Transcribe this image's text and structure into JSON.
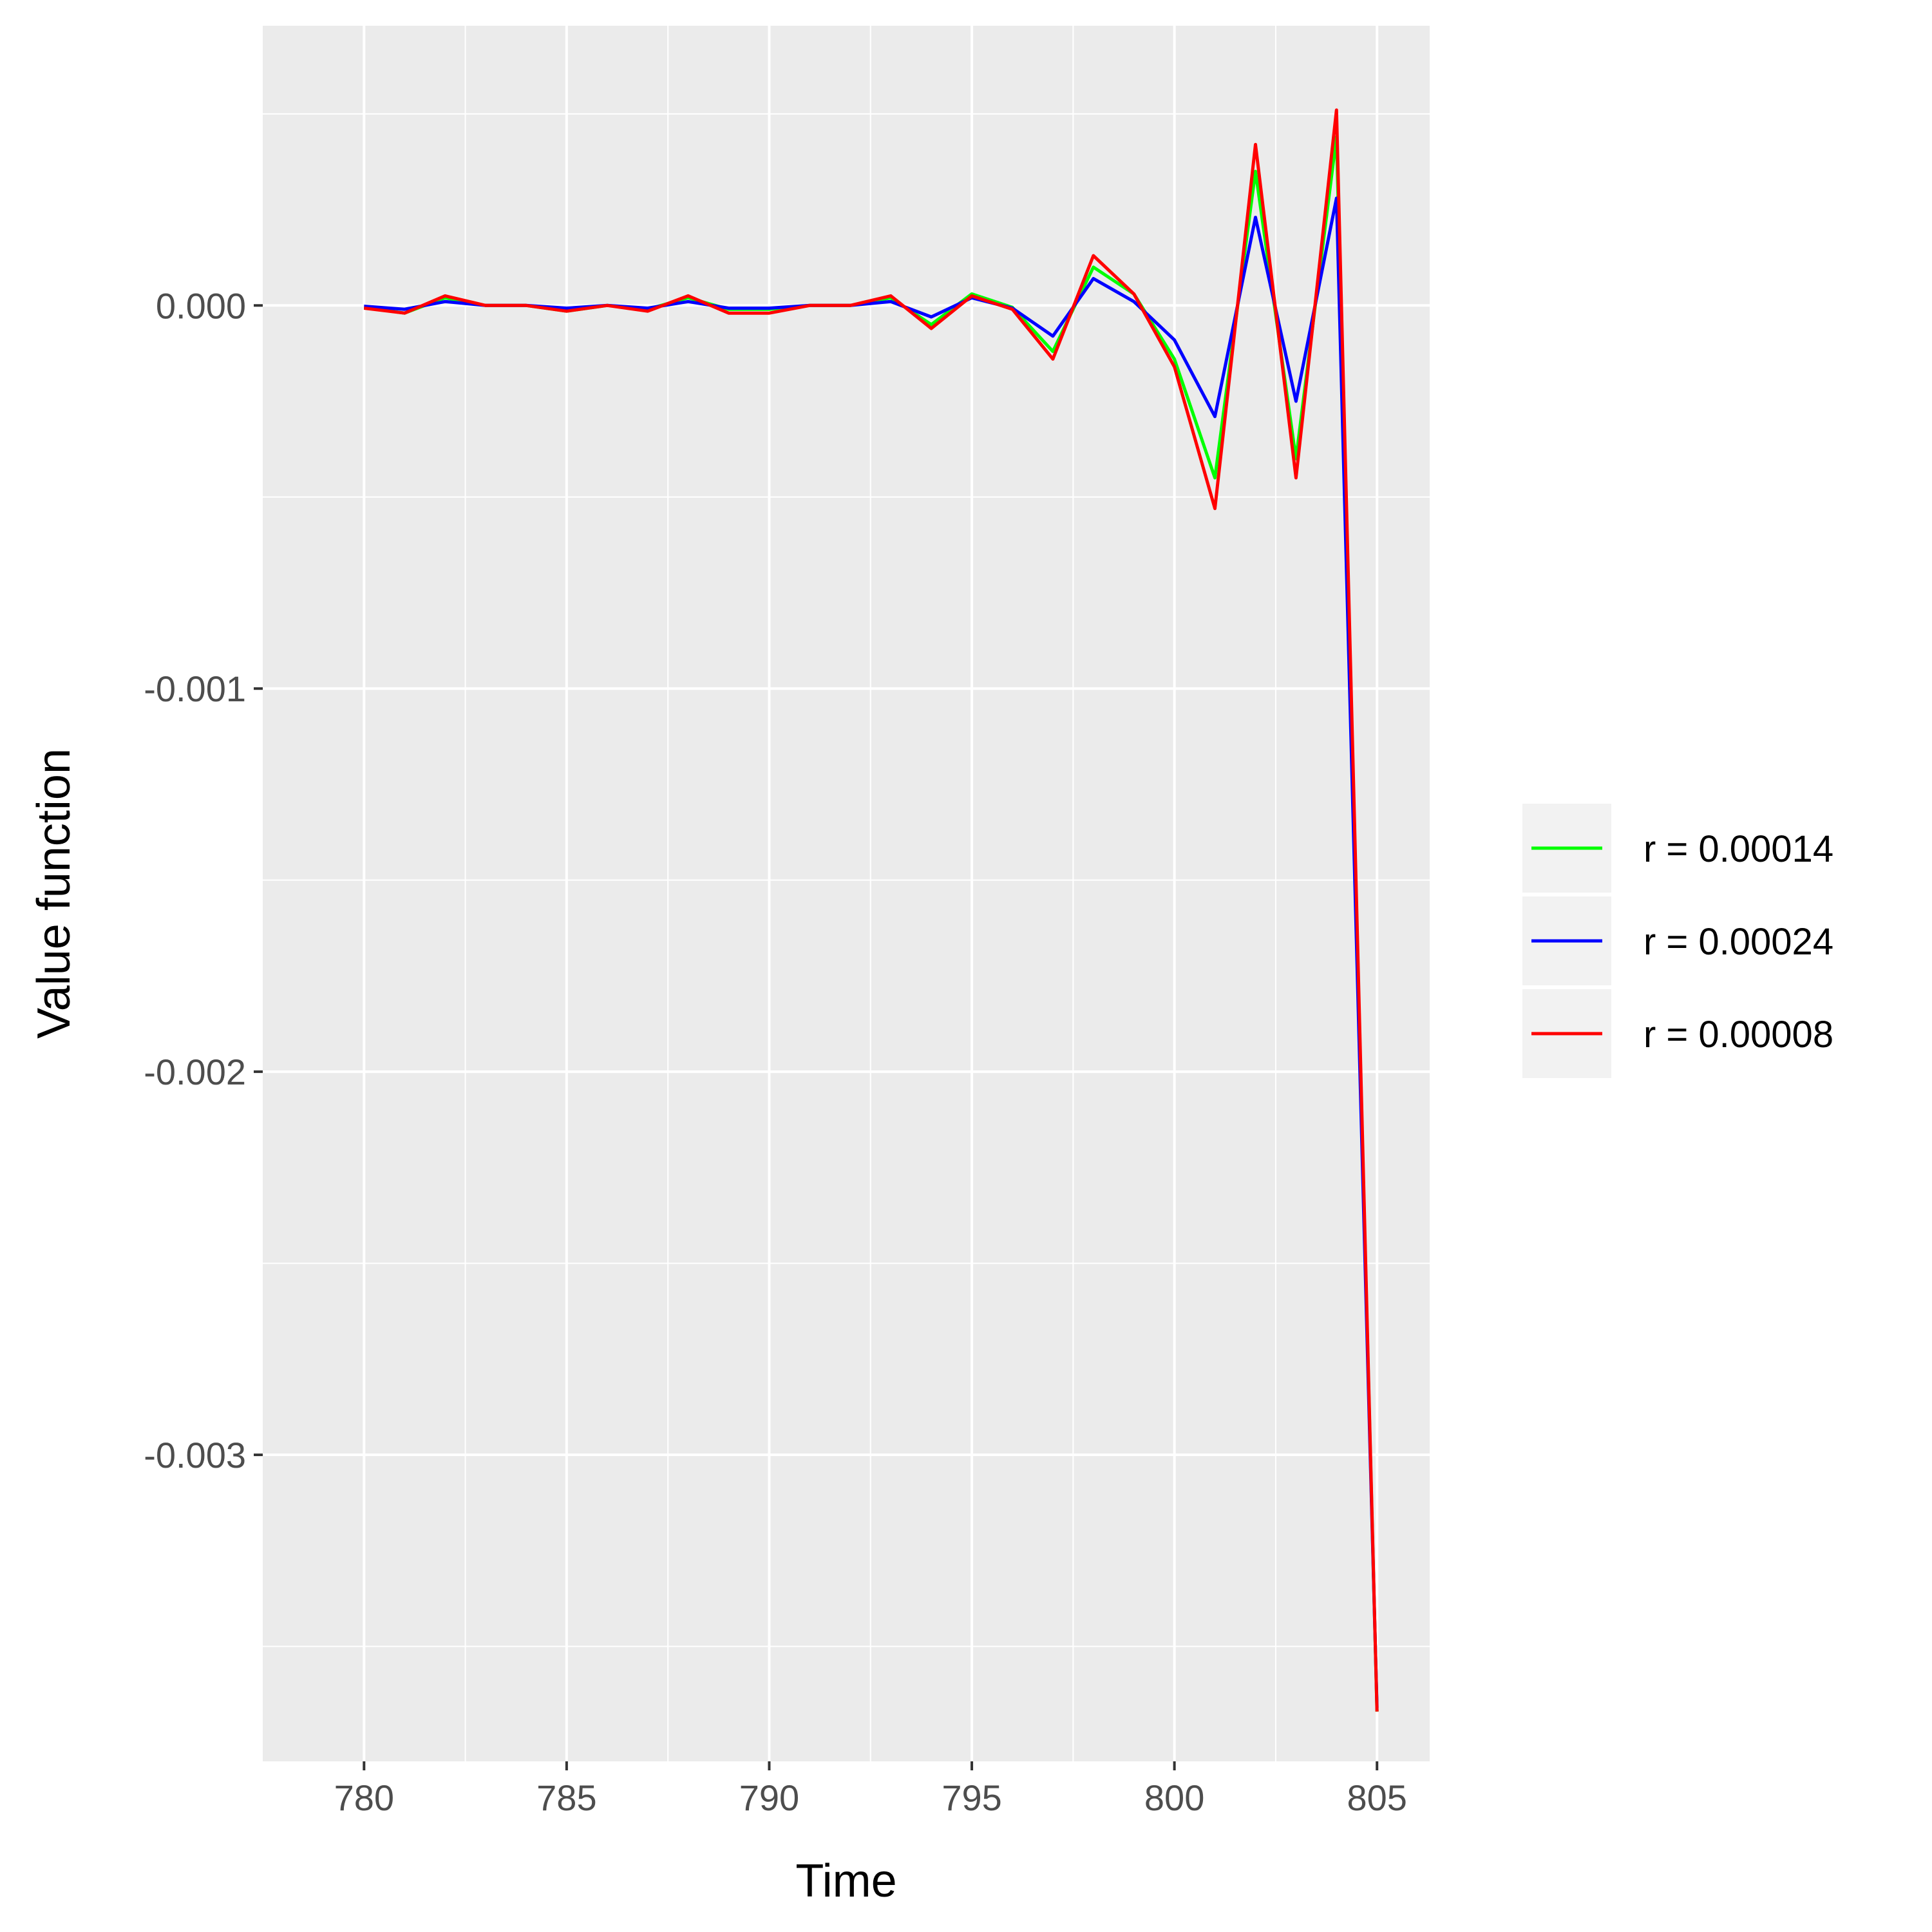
{
  "chart_data": {
    "type": "line",
    "xlabel": "Time",
    "ylabel": "Value function",
    "xlim": [
      777.5,
      806.3
    ],
    "ylim": [
      -0.0038,
      0.00073
    ],
    "x_ticks": [
      780,
      785,
      790,
      795,
      800,
      805
    ],
    "x_tick_labels": [
      "780",
      "785",
      "790",
      "795",
      "800",
      "805"
    ],
    "y_ticks": [
      0.0,
      -0.001,
      -0.002,
      -0.003
    ],
    "y_tick_labels": [
      "0.000",
      "-0.001",
      "-0.002",
      "-0.003"
    ],
    "x_minor": [
      782.5,
      787.5,
      792.5,
      797.5,
      802.5
    ],
    "y_minor": [
      0.0005,
      -0.0005,
      -0.0015,
      -0.0025,
      -0.0035
    ],
    "grid": true,
    "legend_position": "right",
    "x": [
      780,
      781,
      782,
      783,
      784,
      785,
      786,
      787,
      788,
      789,
      790,
      791,
      792,
      793,
      794,
      795,
      796,
      797,
      798,
      799,
      800,
      801,
      802,
      803,
      804,
      805
    ],
    "series": [
      {
        "name": "r = 0.00014",
        "color": "#00ff00",
        "values": [
          -5e-06,
          -2e-05,
          2e-05,
          0.0,
          0.0,
          -1.5e-05,
          0.0,
          -1e-05,
          2e-05,
          -1e-05,
          -1e-05,
          0.0,
          0.0,
          2e-05,
          -5e-05,
          3e-05,
          -5e-06,
          -0.00012,
          0.0001,
          3e-05,
          -0.00014,
          -0.00045,
          0.00035,
          -0.0004,
          0.00044,
          -0.00367
        ]
      },
      {
        "name": "r = 0.00024",
        "color": "#0000ff",
        "values": [
          -2e-06,
          -1e-05,
          1e-05,
          0.0,
          0.0,
          -7e-06,
          0.0,
          -7e-06,
          1e-05,
          -7e-06,
          -7e-06,
          0.0,
          0.0,
          1e-05,
          -3e-05,
          2e-05,
          -7e-06,
          -8e-05,
          7e-05,
          1e-05,
          -9e-05,
          -0.00029,
          0.00023,
          -0.00025,
          0.00028,
          -0.00366
        ]
      },
      {
        "name": "r = 0.00008",
        "color": "#ff0000",
        "values": [
          -7e-06,
          -2e-05,
          2.5e-05,
          0.0,
          0.0,
          -1.5e-05,
          0.0,
          -1.5e-05,
          2.5e-05,
          -2e-05,
          -2e-05,
          0.0,
          0.0,
          2.5e-05,
          -6e-05,
          2.5e-05,
          -1e-05,
          -0.00014,
          0.00013,
          3e-05,
          -0.00016,
          -0.00053,
          0.00042,
          -0.00045,
          0.00051,
          -0.00367
        ]
      }
    ]
  }
}
